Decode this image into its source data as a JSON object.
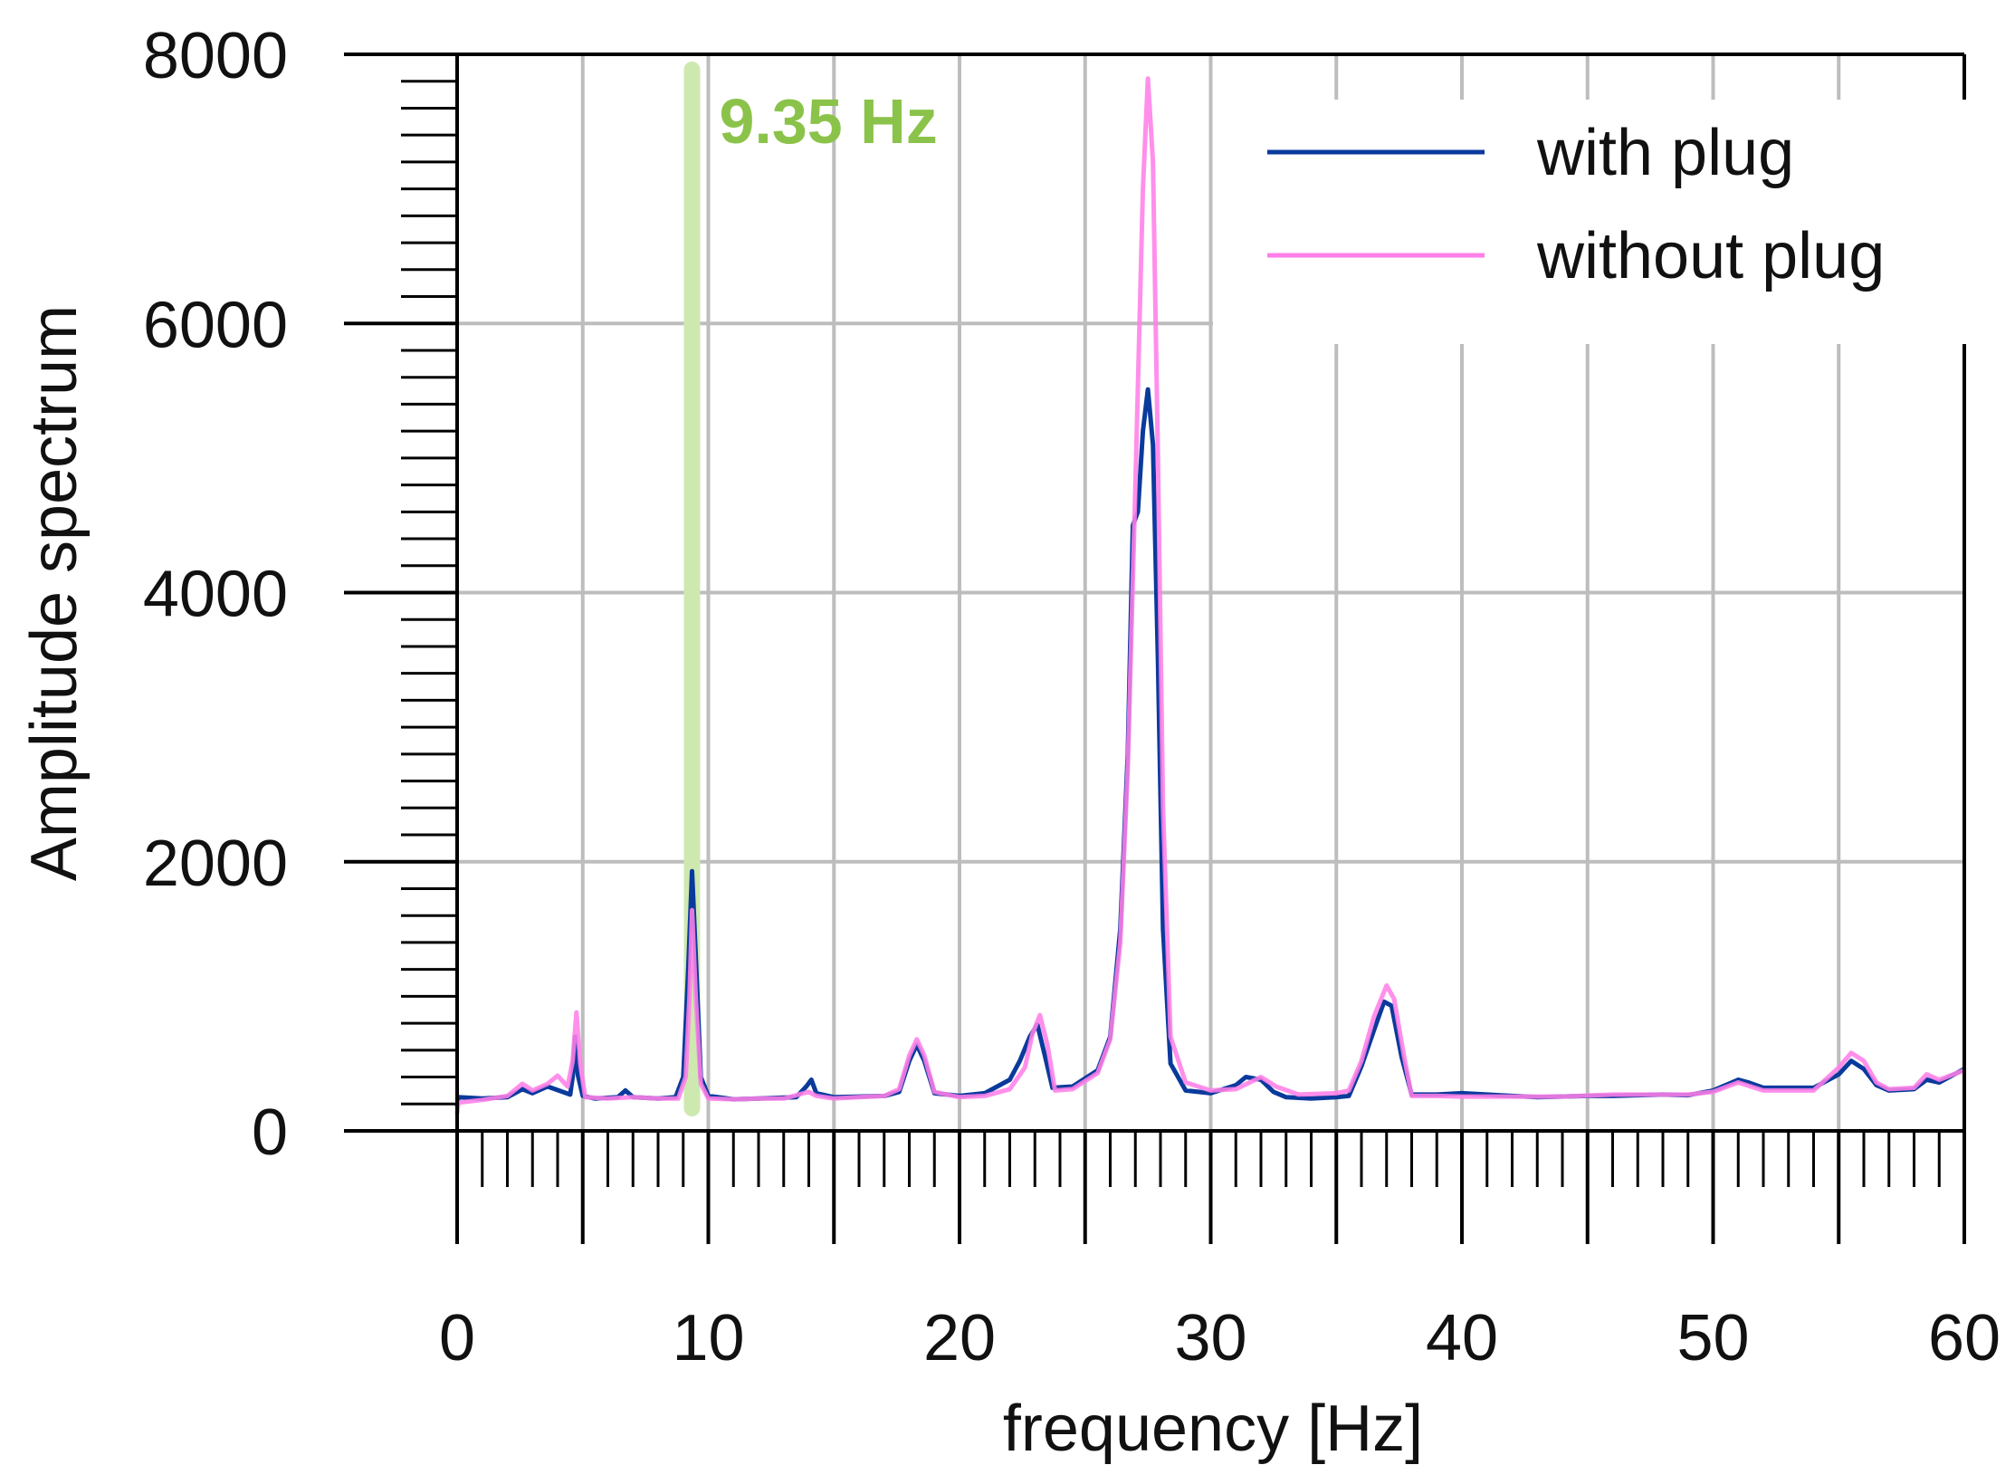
{
  "chart_data": {
    "type": "line",
    "title": "",
    "xlabel": "frequency [Hz]",
    "ylabel": "Amplitude spectrum",
    "xlim": [
      0,
      60
    ],
    "ylim": [
      0,
      8000
    ],
    "x_ticks": [
      0,
      10,
      20,
      30,
      40,
      50,
      60
    ],
    "x_tick_labels": [
      "0",
      "10",
      "20",
      "30",
      "40",
      "50",
      "60"
    ],
    "y_ticks": [
      0,
      2000,
      4000,
      6000,
      8000
    ],
    "y_tick_labels": [
      "0",
      "2000",
      "4000",
      "6000",
      "8000"
    ],
    "x_minor_step": 1,
    "y_minor_step": 200,
    "grid": true,
    "legend_position": "top-right",
    "annotation": {
      "x": 9.35,
      "text": "9.35 Hz",
      "color": "#8bc34a"
    },
    "series": [
      {
        "name": "with plug",
        "color": "#0a3a9c",
        "points": [
          [
            0,
            180
          ],
          [
            0.05,
            250
          ],
          [
            1,
            240
          ],
          [
            2,
            250
          ],
          [
            2.6,
            310
          ],
          [
            3,
            280
          ],
          [
            3.6,
            330
          ],
          [
            4.2,
            290
          ],
          [
            4.5,
            270
          ],
          [
            4.6,
            400
          ],
          [
            4.7,
            700
          ],
          [
            4.8,
            420
          ],
          [
            5,
            260
          ],
          [
            5.5,
            240
          ],
          [
            6.4,
            250
          ],
          [
            6.7,
            300
          ],
          [
            7,
            250
          ],
          [
            8,
            240
          ],
          [
            8.7,
            250
          ],
          [
            9.0,
            400
          ],
          [
            9.2,
            1200
          ],
          [
            9.35,
            1930
          ],
          [
            9.5,
            1300
          ],
          [
            9.7,
            400
          ],
          [
            10,
            260
          ],
          [
            11,
            235
          ],
          [
            12,
            240
          ],
          [
            13.5,
            250
          ],
          [
            13.9,
            330
          ],
          [
            14.1,
            380
          ],
          [
            14.3,
            280
          ],
          [
            15,
            250
          ],
          [
            16,
            255
          ],
          [
            17,
            260
          ],
          [
            17.6,
            290
          ],
          [
            18,
            520
          ],
          [
            18.3,
            640
          ],
          [
            18.6,
            520
          ],
          [
            19,
            280
          ],
          [
            20,
            260
          ],
          [
            21,
            280
          ],
          [
            22,
            380
          ],
          [
            22.4,
            520
          ],
          [
            22.8,
            700
          ],
          [
            23.1,
            790
          ],
          [
            23.4,
            560
          ],
          [
            23.7,
            320
          ],
          [
            24.5,
            330
          ],
          [
            25.5,
            450
          ],
          [
            26,
            700
          ],
          [
            26.4,
            1500
          ],
          [
            26.7,
            2800
          ],
          [
            26.9,
            4500
          ],
          [
            27.1,
            4600
          ],
          [
            27.3,
            5200
          ],
          [
            27.5,
            5510
          ],
          [
            27.7,
            5100
          ],
          [
            27.9,
            3500
          ],
          [
            28.1,
            1500
          ],
          [
            28.4,
            500
          ],
          [
            29,
            300
          ],
          [
            30,
            280
          ],
          [
            31,
            340
          ],
          [
            31.4,
            400
          ],
          [
            32,
            380
          ],
          [
            32.5,
            290
          ],
          [
            33,
            250
          ],
          [
            34,
            240
          ],
          [
            35,
            250
          ],
          [
            35.5,
            260
          ],
          [
            36,
            480
          ],
          [
            36.5,
            750
          ],
          [
            36.9,
            960
          ],
          [
            37.2,
            930
          ],
          [
            37.6,
            550
          ],
          [
            38,
            270
          ],
          [
            39,
            270
          ],
          [
            40,
            280
          ],
          [
            41,
            270
          ],
          [
            43,
            250
          ],
          [
            45,
            260
          ],
          [
            46,
            260
          ],
          [
            48,
            270
          ],
          [
            49,
            265
          ],
          [
            50,
            300
          ],
          [
            51,
            380
          ],
          [
            51.4,
            360
          ],
          [
            52,
            320
          ],
          [
            54,
            320
          ],
          [
            55,
            420
          ],
          [
            55.5,
            520
          ],
          [
            56,
            460
          ],
          [
            56.5,
            340
          ],
          [
            57,
            300
          ],
          [
            58,
            310
          ],
          [
            58.5,
            380
          ],
          [
            59,
            360
          ],
          [
            59.5,
            410
          ],
          [
            60,
            460
          ]
        ]
      },
      {
        "name": "without plug",
        "color": "#ff7fe8",
        "points": [
          [
            0,
            130
          ],
          [
            0.05,
            210
          ],
          [
            1,
            230
          ],
          [
            2,
            260
          ],
          [
            2.6,
            350
          ],
          [
            3,
            300
          ],
          [
            3.6,
            350
          ],
          [
            4,
            410
          ],
          [
            4.4,
            330
          ],
          [
            4.6,
            520
          ],
          [
            4.75,
            880
          ],
          [
            4.9,
            500
          ],
          [
            5.1,
            250
          ],
          [
            6,
            240
          ],
          [
            7,
            250
          ],
          [
            8,
            240
          ],
          [
            8.8,
            240
          ],
          [
            9.1,
            400
          ],
          [
            9.25,
            1000
          ],
          [
            9.35,
            1640
          ],
          [
            9.5,
            1000
          ],
          [
            9.7,
            350
          ],
          [
            10,
            240
          ],
          [
            11,
            235
          ],
          [
            12,
            240
          ],
          [
            13,
            240
          ],
          [
            14,
            290
          ],
          [
            14.3,
            260
          ],
          [
            15,
            240
          ],
          [
            16,
            250
          ],
          [
            17,
            260
          ],
          [
            17.6,
            310
          ],
          [
            18,
            560
          ],
          [
            18.3,
            680
          ],
          [
            18.6,
            560
          ],
          [
            19,
            290
          ],
          [
            20,
            250
          ],
          [
            21,
            260
          ],
          [
            22,
            310
          ],
          [
            22.6,
            470
          ],
          [
            22.9,
            720
          ],
          [
            23.2,
            860
          ],
          [
            23.5,
            640
          ],
          [
            23.8,
            300
          ],
          [
            24.5,
            310
          ],
          [
            25.5,
            430
          ],
          [
            26,
            680
          ],
          [
            26.4,
            1400
          ],
          [
            26.7,
            2700
          ],
          [
            27,
            4800
          ],
          [
            27.3,
            7000
          ],
          [
            27.5,
            7820
          ],
          [
            27.7,
            7200
          ],
          [
            27.9,
            5000
          ],
          [
            28.1,
            2400
          ],
          [
            28.4,
            700
          ],
          [
            29,
            360
          ],
          [
            30,
            300
          ],
          [
            31,
            310
          ],
          [
            32,
            400
          ],
          [
            32.6,
            330
          ],
          [
            33.5,
            270
          ],
          [
            35,
            280
          ],
          [
            35.5,
            300
          ],
          [
            36,
            520
          ],
          [
            36.5,
            850
          ],
          [
            37,
            1080
          ],
          [
            37.3,
            980
          ],
          [
            37.7,
            550
          ],
          [
            38,
            260
          ],
          [
            39,
            260
          ],
          [
            40,
            255
          ],
          [
            42,
            255
          ],
          [
            44,
            255
          ],
          [
            46,
            270
          ],
          [
            48,
            270
          ],
          [
            49,
            270
          ],
          [
            50,
            290
          ],
          [
            51,
            360
          ],
          [
            51.5,
            330
          ],
          [
            52,
            300
          ],
          [
            54,
            300
          ],
          [
            55,
            470
          ],
          [
            55.5,
            580
          ],
          [
            56,
            520
          ],
          [
            56.5,
            360
          ],
          [
            57,
            310
          ],
          [
            58,
            320
          ],
          [
            58.5,
            420
          ],
          [
            59,
            380
          ],
          [
            60,
            450
          ]
        ]
      }
    ]
  }
}
